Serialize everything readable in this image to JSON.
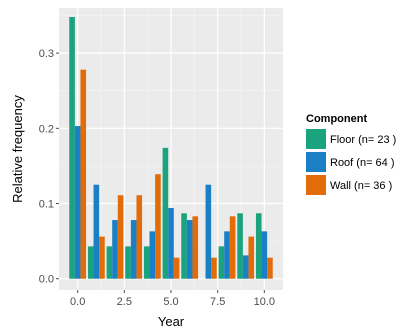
{
  "chart_data": {
    "type": "bar",
    "xlabel": "Year",
    "ylabel": "Relative frequency",
    "xlim": [
      -1,
      11
    ],
    "ylim": [
      -0.015,
      0.36
    ],
    "x_ticks": [
      0,
      2.5,
      5,
      7.5,
      10
    ],
    "x_tick_labels": [
      "0.0",
      "2.5",
      "5.0",
      "7.5",
      "10.0"
    ],
    "y_ticks": [
      0,
      0.1,
      0.2,
      0.3
    ],
    "y_tick_labels": [
      "0.0",
      "0.1",
      "0.2",
      "0.3"
    ],
    "grid": true,
    "legend_title": "Component",
    "legend_position": "right",
    "x": [
      0,
      1,
      2,
      3,
      4,
      5,
      6,
      7,
      8,
      9,
      10
    ],
    "series": [
      {
        "name": "Floor (n= 23 )",
        "color": "#1aa37e",
        "values": [
          0.348,
          0.043,
          0.043,
          0.043,
          0.043,
          0.174,
          0.087,
          0,
          0.043,
          0.087,
          0.087
        ]
      },
      {
        "name": "Roof (n= 64 )",
        "color": "#1a7fc4",
        "values": [
          0.203,
          0.125,
          0.078,
          0.078,
          0.063,
          0.094,
          0.078,
          0.125,
          0.063,
          0.031,
          0.063
        ]
      },
      {
        "name": "Wall (n= 36 )",
        "color": "#e26b0a",
        "values": [
          0.278,
          0.056,
          0.111,
          0.111,
          0.139,
          0.028,
          0.083,
          0.028,
          0.083,
          0.056,
          0.028
        ]
      }
    ]
  }
}
